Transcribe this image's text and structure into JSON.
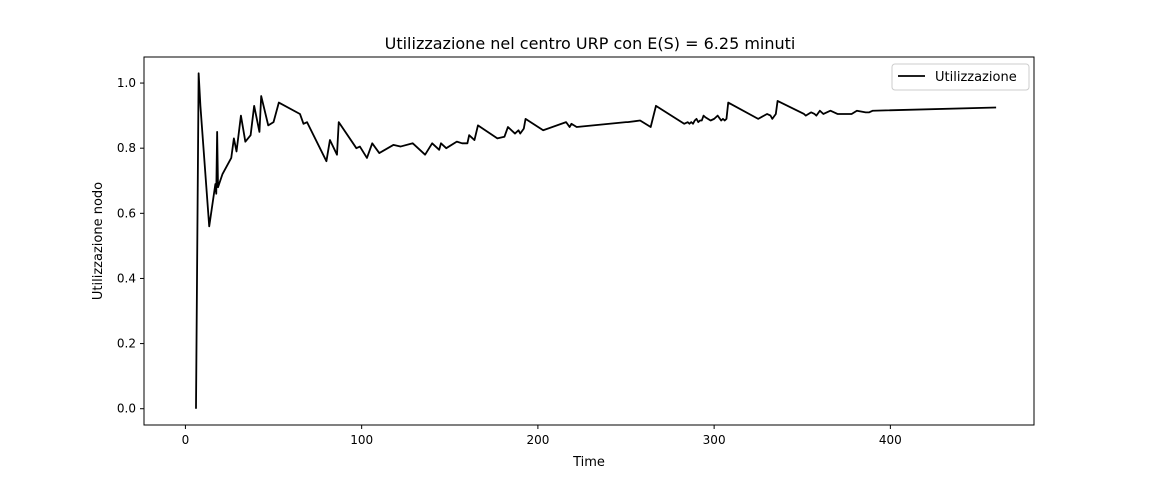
{
  "chart_data": {
    "type": "line",
    "title": "Utilizzazione nel centro URP con E(S) = 6.25 minuti",
    "xlabel": "Time",
    "ylabel": "Utilizzazione nodo",
    "xlim": [
      -23.5,
      481.5
    ],
    "ylim": [
      -0.05,
      1.08
    ],
    "xticks": [
      0,
      100,
      200,
      300,
      400
    ],
    "yticks": [
      0.0,
      0.2,
      0.4,
      0.6,
      0.8,
      1.0
    ],
    "xtick_labels": [
      "0",
      "100",
      "200",
      "300",
      "400"
    ],
    "ytick_labels": [
      "0.0",
      "0.2",
      "0.4",
      "0.6",
      "0.8",
      "1.0"
    ],
    "grid": false,
    "legend_position": "top-right",
    "series": [
      {
        "name": "Utilizzazione",
        "color": "#000000",
        "x": [
          6,
          7.5,
          8.5,
          13.5,
          17,
          17.5,
          18,
          18.5,
          21,
          26,
          27.5,
          29,
          31.5,
          34,
          37,
          39,
          42,
          43,
          47,
          50,
          53,
          65,
          67,
          69,
          80,
          82,
          86,
          87,
          97,
          99,
          103,
          106,
          110,
          118,
          122,
          129,
          136,
          140,
          144,
          145,
          148,
          154,
          157,
          160,
          161,
          164,
          166,
          177,
          181,
          183,
          187,
          189,
          190,
          192,
          193,
          203,
          216,
          218,
          219,
          222,
          250,
          251,
          258,
          264,
          267,
          283,
          285,
          286,
          287,
          288,
          289,
          290,
          291,
          292,
          293,
          294,
          295,
          298,
          300,
          302,
          304,
          305,
          306,
          307,
          308,
          325,
          330,
          332,
          333,
          335,
          336,
          351,
          352,
          355,
          357,
          358,
          360,
          362,
          364,
          366,
          370,
          376,
          378,
          381,
          386,
          388,
          390,
          460
        ],
        "values": [
          0.0,
          1.03,
          0.93,
          0.56,
          0.69,
          0.66,
          0.85,
          0.68,
          0.72,
          0.77,
          0.83,
          0.79,
          0.9,
          0.82,
          0.84,
          0.93,
          0.85,
          0.96,
          0.87,
          0.88,
          0.94,
          0.905,
          0.875,
          0.88,
          0.76,
          0.825,
          0.78,
          0.88,
          0.8,
          0.805,
          0.77,
          0.815,
          0.785,
          0.81,
          0.805,
          0.815,
          0.78,
          0.815,
          0.795,
          0.815,
          0.8,
          0.82,
          0.815,
          0.815,
          0.84,
          0.825,
          0.87,
          0.83,
          0.835,
          0.865,
          0.845,
          0.855,
          0.845,
          0.86,
          0.89,
          0.855,
          0.88,
          0.865,
          0.875,
          0.865,
          0.88,
          0.88,
          0.885,
          0.865,
          0.93,
          0.875,
          0.88,
          0.875,
          0.88,
          0.875,
          0.885,
          0.89,
          0.88,
          0.885,
          0.885,
          0.9,
          0.895,
          0.885,
          0.89,
          0.9,
          0.885,
          0.89,
          0.885,
          0.89,
          0.94,
          0.89,
          0.905,
          0.9,
          0.89,
          0.905,
          0.945,
          0.905,
          0.9,
          0.91,
          0.905,
          0.9,
          0.915,
          0.905,
          0.91,
          0.915,
          0.905,
          0.905,
          0.905,
          0.915,
          0.91,
          0.91,
          0.915,
          0.925
        ]
      }
    ]
  }
}
